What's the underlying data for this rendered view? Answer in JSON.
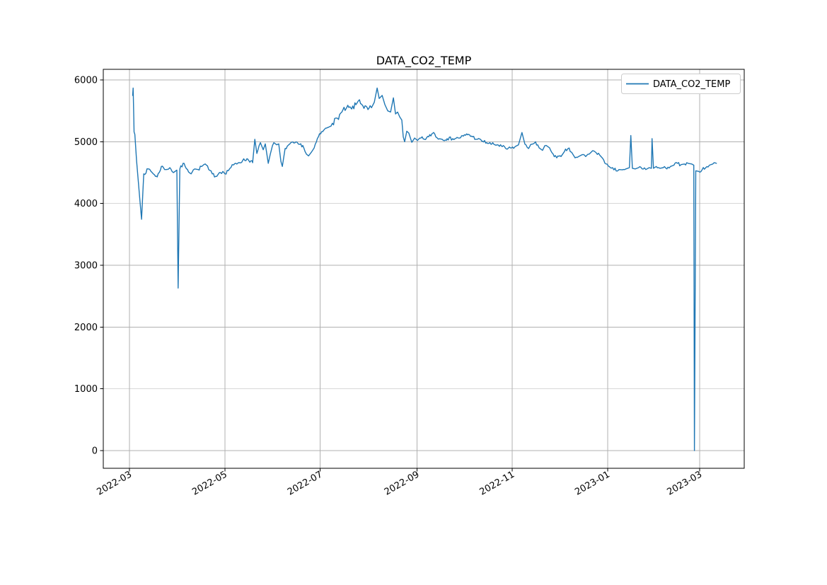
{
  "window": {
    "background": "#ffffff"
  },
  "chart_data": {
    "type": "line",
    "title": "DATA_CO2_TEMP",
    "xlabel": "",
    "ylabel": "",
    "grid": true,
    "grid_color": "#b0b0b0",
    "x_axis": {
      "epoch": "2022-03-01",
      "unit": "days since 2022-03-01",
      "tick_days": [
        0,
        61,
        122,
        184,
        245,
        306,
        365
      ],
      "tick_labels": [
        "2022-03",
        "2022-05",
        "2022-07",
        "2022-09",
        "2022-11",
        "2023-01",
        "2023-03"
      ],
      "lim_days": [
        -16.8,
        393.5
      ],
      "label_rotation_deg": 30
    },
    "y_axis": {
      "ticks": [
        0,
        1000,
        2000,
        3000,
        4000,
        5000,
        6000
      ],
      "tick_labels": [
        "0",
        "1000",
        "2000",
        "3000",
        "4000",
        "5000",
        "6000"
      ],
      "lim": [
        -286,
        6172
      ]
    },
    "legend": {
      "position": "upper right",
      "entries": [
        "DATA_CO2_TEMP"
      ]
    },
    "series": [
      {
        "name": "DATA_CO2_TEMP",
        "color": "#1f77b4",
        "points_day_value": [
          [
            2.0,
            5750
          ],
          [
            2.3,
            5870
          ],
          [
            2.7,
            5400
          ],
          [
            2.9,
            5160
          ],
          [
            3.4,
            5120
          ],
          [
            3.7,
            5000
          ],
          [
            4.5,
            4700
          ],
          [
            5.5,
            4400
          ],
          [
            6.5,
            4100
          ],
          [
            7.7,
            3744
          ],
          [
            9.1,
            4480
          ],
          [
            12.2,
            4560
          ],
          [
            14.5,
            4500
          ],
          [
            17.7,
            4430
          ],
          [
            20.4,
            4600
          ],
          [
            23.5,
            4550
          ],
          [
            25.8,
            4580
          ],
          [
            28.1,
            4500
          ],
          [
            30.3,
            4540
          ],
          [
            31.1,
            2630
          ],
          [
            32.2,
            4560
          ],
          [
            34.9,
            4650
          ],
          [
            37.1,
            4550
          ],
          [
            39.4,
            4480
          ],
          [
            41.7,
            4560
          ],
          [
            43.9,
            4550
          ],
          [
            46.2,
            4600
          ],
          [
            48.5,
            4640
          ],
          [
            50.7,
            4550
          ],
          [
            53.0,
            4480
          ],
          [
            55.2,
            4440
          ],
          [
            57.5,
            4500
          ],
          [
            59.8,
            4520
          ],
          [
            61.1,
            4480
          ],
          [
            64.3,
            4570
          ],
          [
            66.6,
            4625
          ],
          [
            69.7,
            4660
          ],
          [
            72.4,
            4695
          ],
          [
            75.6,
            4720
          ],
          [
            78.8,
            4660
          ],
          [
            80.2,
            5040
          ],
          [
            81.5,
            4810
          ],
          [
            83.8,
            4985
          ],
          [
            85.6,
            4870
          ],
          [
            86.9,
            4965
          ],
          [
            88.8,
            4650
          ],
          [
            90.1,
            4800
          ],
          [
            92.4,
            4985
          ],
          [
            94.2,
            4950
          ],
          [
            95.5,
            4965
          ],
          [
            96.9,
            4680
          ],
          [
            97.8,
            4600
          ],
          [
            99.6,
            4890
          ],
          [
            101.9,
            4950
          ],
          [
            105.1,
            4980
          ],
          [
            108.2,
            4960
          ],
          [
            110.9,
            4940
          ],
          [
            113.2,
            4800
          ],
          [
            114.6,
            4770
          ],
          [
            116.4,
            4830
          ],
          [
            118.2,
            4900
          ],
          [
            120.9,
            5080
          ],
          [
            124.1,
            5180
          ],
          [
            126.8,
            5230
          ],
          [
            129.9,
            5300
          ],
          [
            133.1,
            5380
          ],
          [
            135.9,
            5480
          ],
          [
            139.0,
            5550
          ],
          [
            142.2,
            5530
          ],
          [
            144.9,
            5600
          ],
          [
            147.2,
            5680
          ],
          [
            149.4,
            5580
          ],
          [
            152.6,
            5520
          ],
          [
            154.9,
            5550
          ],
          [
            156.7,
            5640
          ],
          [
            158.5,
            5870
          ],
          [
            159.8,
            5700
          ],
          [
            161.7,
            5750
          ],
          [
            163.5,
            5600
          ],
          [
            165.3,
            5500
          ],
          [
            167.1,
            5480
          ],
          [
            168.9,
            5710
          ],
          [
            170.3,
            5450
          ],
          [
            171.6,
            5480
          ],
          [
            173.0,
            5400
          ],
          [
            174.3,
            5350
          ],
          [
            175.2,
            5080
          ],
          [
            176.1,
            5000
          ],
          [
            177.5,
            5170
          ],
          [
            178.8,
            5140
          ],
          [
            180.7,
            4990
          ],
          [
            182.5,
            5060
          ],
          [
            184.3,
            5020
          ],
          [
            186.6,
            5060
          ],
          [
            188.8,
            5040
          ],
          [
            191.5,
            5080
          ],
          [
            194.7,
            5150
          ],
          [
            197.0,
            5060
          ],
          [
            200.1,
            5040
          ],
          [
            203.3,
            5050
          ],
          [
            206.9,
            5050
          ],
          [
            210.5,
            5060
          ],
          [
            213.7,
            5090
          ],
          [
            216.9,
            5120
          ],
          [
            219.6,
            5080
          ],
          [
            222.7,
            5040
          ],
          [
            225.9,
            5010
          ],
          [
            228.6,
            4985
          ],
          [
            231.8,
            4960
          ],
          [
            235.4,
            4950
          ],
          [
            238.6,
            4920
          ],
          [
            241.8,
            4880
          ],
          [
            244.5,
            4900
          ],
          [
            246.8,
            4920
          ],
          [
            249.0,
            4950
          ],
          [
            251.2,
            5150
          ],
          [
            253.1,
            4960
          ],
          [
            255.4,
            4890
          ],
          [
            257.6,
            4960
          ],
          [
            259.9,
            5000
          ],
          [
            262.2,
            4900
          ],
          [
            264.4,
            4860
          ],
          [
            266.7,
            4940
          ],
          [
            268.9,
            4900
          ],
          [
            271.2,
            4800
          ],
          [
            273.5,
            4740
          ],
          [
            276.2,
            4760
          ],
          [
            278.4,
            4840
          ],
          [
            280.7,
            4890
          ],
          [
            283.0,
            4830
          ],
          [
            285.2,
            4740
          ],
          [
            287.5,
            4760
          ],
          [
            289.7,
            4790
          ],
          [
            292.0,
            4760
          ],
          [
            294.3,
            4800
          ],
          [
            296.5,
            4855
          ],
          [
            298.8,
            4820
          ],
          [
            301.1,
            4780
          ],
          [
            302.9,
            4730
          ],
          [
            305.1,
            4640
          ],
          [
            307.8,
            4580
          ],
          [
            310.1,
            4545
          ],
          [
            313.3,
            4550
          ],
          [
            315.5,
            4545
          ],
          [
            317.8,
            4560
          ],
          [
            320.0,
            4580
          ],
          [
            320.9,
            5100
          ],
          [
            321.9,
            4570
          ],
          [
            323.7,
            4560
          ],
          [
            325.9,
            4580
          ],
          [
            328.2,
            4560
          ],
          [
            330.5,
            4550
          ],
          [
            332.7,
            4580
          ],
          [
            334.1,
            4570
          ],
          [
            334.5,
            5050
          ],
          [
            335.4,
            4570
          ],
          [
            337.2,
            4600
          ],
          [
            339.5,
            4570
          ],
          [
            341.7,
            4580
          ],
          [
            344.0,
            4560
          ],
          [
            346.3,
            4600
          ],
          [
            348.5,
            4620
          ],
          [
            350.8,
            4650
          ],
          [
            353.1,
            4630
          ],
          [
            355.3,
            4640
          ],
          [
            357.6,
            4650
          ],
          [
            359.8,
            4640
          ],
          [
            361.2,
            4620
          ],
          [
            361.6,
            0
          ],
          [
            362.5,
            4530
          ],
          [
            364.4,
            4520
          ],
          [
            366.6,
            4550
          ],
          [
            368.9,
            4580
          ],
          [
            371.2,
            4620
          ],
          [
            373.4,
            4640
          ],
          [
            375.7,
            4650
          ]
        ]
      }
    ],
    "render_noise": {
      "base_amplitude": 28,
      "regions": [
        {
          "from_day": 130,
          "to_day": 176,
          "amplitude": 46
        }
      ],
      "step_days": 0.7,
      "seed": 7
    }
  }
}
